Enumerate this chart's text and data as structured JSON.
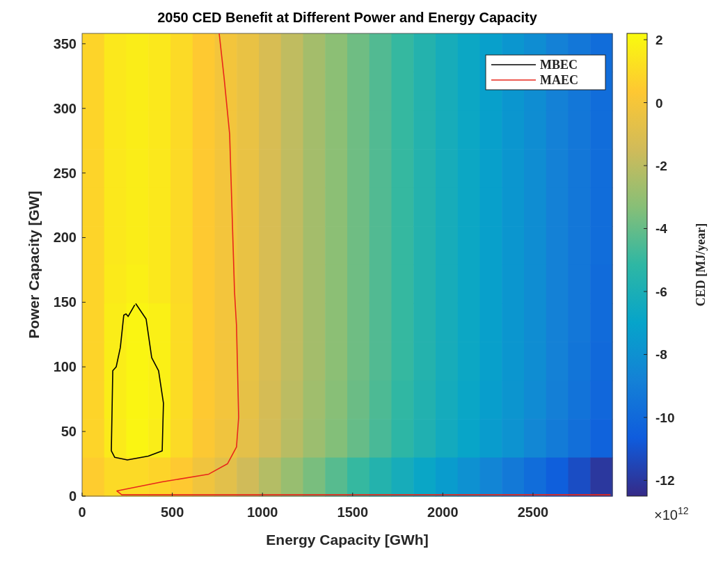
{
  "chart_data": {
    "type": "heatmap",
    "title": "2050 CED Benefit at Different Power and Energy Capacity",
    "xlabel": "Energy Capacity [GWh]",
    "ylabel": "Power Capacity [GW]",
    "clabel": "CED [MJ/year]",
    "annotations": [
      "×10$^{12}$"
    ],
    "x": [
      61.25,
      183.75,
      306.25,
      428.75,
      551.25,
      673.75,
      796.25,
      918.75,
      1041.25,
      1163.75,
      1286.25,
      1408.75,
      1531.25,
      1653.75,
      1776.25,
      1898.75,
      2021.25,
      2143.75,
      2266.25,
      2388.75,
      2511.25,
      2633.75,
      2756.25,
      2878.75
    ],
    "y": [
      343.08,
      313.25,
      283.42,
      253.58,
      223.75,
      193.92,
      164.08,
      134.25,
      104.42,
      74.58,
      44.75,
      14.92
    ],
    "cells": [
      [
        0.8,
        1.5,
        1.7,
        1.5,
        1.0,
        0.4,
        -0.1,
        -0.5,
        -1.2,
        -1.9,
        -2.6,
        -3.2,
        -3.8,
        -4.4,
        -5.0,
        -5.6,
        -6.2,
        -6.7,
        -7.2,
        -7.7,
        -8.2,
        -8.8,
        -9.3,
        -9.8
      ],
      [
        0.8,
        1.5,
        1.7,
        1.5,
        1.0,
        0.4,
        -0.1,
        -0.5,
        -1.2,
        -1.9,
        -2.6,
        -3.2,
        -3.8,
        -4.4,
        -5.0,
        -5.6,
        -6.2,
        -6.7,
        -7.2,
        -7.7,
        -8.2,
        -8.8,
        -9.3,
        -9.8
      ],
      [
        0.8,
        1.5,
        1.7,
        1.5,
        1.0,
        0.4,
        -0.1,
        -0.5,
        -1.2,
        -1.9,
        -2.6,
        -3.2,
        -3.8,
        -4.4,
        -5.0,
        -5.6,
        -6.2,
        -6.7,
        -7.2,
        -7.7,
        -8.2,
        -8.8,
        -9.3,
        -9.8
      ],
      [
        0.8,
        1.5,
        1.7,
        1.5,
        1.0,
        0.4,
        -0.1,
        -0.5,
        -1.2,
        -1.9,
        -2.6,
        -3.2,
        -3.8,
        -4.4,
        -5.0,
        -5.6,
        -6.2,
        -6.7,
        -7.2,
        -7.7,
        -8.2,
        -8.8,
        -9.3,
        -9.8
      ],
      [
        0.8,
        1.5,
        1.7,
        1.5,
        1.0,
        0.4,
        -0.1,
        -0.5,
        -1.2,
        -1.9,
        -2.6,
        -3.2,
        -3.8,
        -4.4,
        -5.0,
        -5.6,
        -6.2,
        -6.7,
        -7.2,
        -7.7,
        -8.2,
        -8.8,
        -9.3,
        -9.8
      ],
      [
        0.8,
        1.5,
        1.7,
        1.5,
        1.0,
        0.4,
        -0.1,
        -0.5,
        -1.2,
        -1.9,
        -2.6,
        -3.2,
        -3.8,
        -4.4,
        -5.0,
        -5.6,
        -6.2,
        -6.7,
        -7.2,
        -7.7,
        -8.2,
        -8.8,
        -9.3,
        -9.8
      ],
      [
        0.8,
        1.6,
        1.8,
        1.5,
        1.0,
        0.4,
        -0.1,
        -0.5,
        -1.2,
        -1.9,
        -2.6,
        -3.2,
        -3.8,
        -4.4,
        -5.0,
        -5.6,
        -6.2,
        -6.7,
        -7.2,
        -7.7,
        -8.2,
        -8.8,
        -9.3,
        -9.9
      ],
      [
        0.8,
        1.7,
        2.0,
        1.8,
        1.1,
        0.4,
        -0.1,
        -0.5,
        -1.2,
        -1.9,
        -2.6,
        -3.2,
        -3.8,
        -4.4,
        -5.0,
        -5.6,
        -6.2,
        -6.7,
        -7.2,
        -7.7,
        -8.2,
        -8.8,
        -9.3,
        -9.9
      ],
      [
        0.8,
        1.7,
        2.0,
        1.8,
        1.1,
        0.4,
        -0.1,
        -0.5,
        -1.2,
        -1.9,
        -2.6,
        -3.2,
        -3.8,
        -4.4,
        -5.0,
        -5.6,
        -6.2,
        -6.7,
        -7.2,
        -7.7,
        -8.2,
        -8.8,
        -9.4,
        -10.0
      ],
      [
        0.8,
        1.7,
        2.0,
        1.8,
        1.1,
        0.4,
        -0.1,
        -0.6,
        -1.3,
        -2.0,
        -2.7,
        -3.3,
        -3.9,
        -4.5,
        -5.1,
        -5.7,
        -6.3,
        -6.8,
        -7.3,
        -7.8,
        -8.3,
        -8.9,
        -9.5,
        -10.1
      ],
      [
        0.8,
        1.6,
        2.0,
        1.7,
        1.0,
        0.3,
        -0.2,
        -0.7,
        -1.4,
        -2.1,
        -2.8,
        -3.4,
        -4.0,
        -4.6,
        -5.2,
        -5.8,
        -6.4,
        -6.9,
        -7.4,
        -7.9,
        -8.5,
        -9.1,
        -9.7,
        -10.3
      ],
      [
        0.5,
        1.0,
        1.0,
        0.8,
        0.4,
        -0.2,
        -0.8,
        -1.5,
        -2.2,
        -2.9,
        -3.6,
        -4.3,
        -5.0,
        -5.6,
        -6.2,
        -6.8,
        -7.4,
        -8.0,
        -8.6,
        -9.2,
        -9.8,
        -10.5,
        -11.2,
        -12.0
      ]
    ],
    "clim": [
      -12.5,
      2.2
    ],
    "cticks": [
      -12,
      -10,
      -8,
      -6,
      -4,
      -2,
      0,
      2
    ],
    "xlim": [
      0,
      2940
    ],
    "xticks": [
      0,
      500,
      1000,
      1500,
      2000,
      2500
    ],
    "ylim": [
      0,
      358
    ],
    "yticks": [
      0,
      50,
      100,
      150,
      200,
      250,
      300,
      350
    ],
    "legend": "top right",
    "series": [
      {
        "name": "MBEC",
        "type": "line",
        "color": "#000000",
        "x": [
          297,
          355,
          386,
          424,
          451,
          444,
          367,
          251,
          181,
          162,
          170,
          189,
          212,
          231,
          243,
          255,
          292
        ],
        "values": [
          149,
          137,
          107,
          97,
          72,
          35,
          31,
          28,
          30,
          35,
          97,
          100,
          115,
          140,
          141,
          139,
          148
        ]
      },
      {
        "name": "MAEC",
        "type": "line",
        "color": "#e8261b",
        "x": [
          760,
          787,
          818,
          845,
          856,
          868,
          856,
          806,
          702,
          444,
          193,
          220,
          2930
        ],
        "values": [
          358,
          324,
          280,
          158,
          132,
          61,
          38,
          25,
          17,
          11,
          4,
          1,
          1
        ]
      }
    ]
  }
}
